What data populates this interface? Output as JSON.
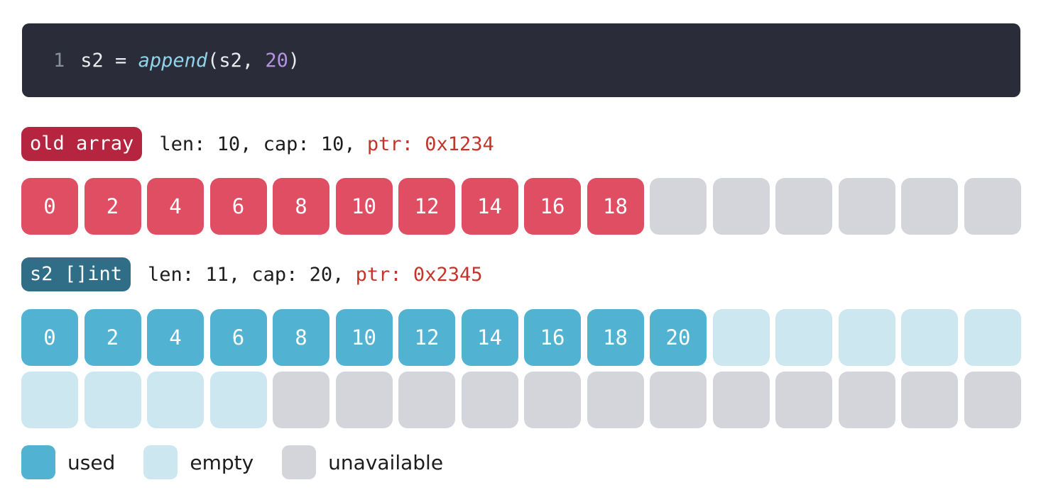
{
  "code": {
    "line_number": "1",
    "var": "s2",
    "op": " = ",
    "fn": "append",
    "open": "(",
    "arg1": "s2, ",
    "arg2": "20",
    "close": ")"
  },
  "old_array": {
    "tag": "old array",
    "meta": "len: 10, cap: 10, ",
    "ptr": "ptr: 0x1234",
    "cells": [
      {
        "value": "0",
        "state": "red"
      },
      {
        "value": "2",
        "state": "red"
      },
      {
        "value": "4",
        "state": "red"
      },
      {
        "value": "6",
        "state": "red"
      },
      {
        "value": "8",
        "state": "red"
      },
      {
        "value": "10",
        "state": "red"
      },
      {
        "value": "12",
        "state": "red"
      },
      {
        "value": "14",
        "state": "red"
      },
      {
        "value": "16",
        "state": "red"
      },
      {
        "value": "18",
        "state": "red"
      },
      {
        "value": "",
        "state": "unavail"
      },
      {
        "value": "",
        "state": "unavail"
      },
      {
        "value": "",
        "state": "unavail"
      },
      {
        "value": "",
        "state": "unavail"
      },
      {
        "value": "",
        "state": "unavail"
      },
      {
        "value": "",
        "state": "unavail"
      }
    ]
  },
  "new_slice": {
    "tag": "s2 []int",
    "meta": "len: 11, cap: 20, ",
    "ptr": "ptr: 0x2345",
    "rows": [
      [
        {
          "value": "0",
          "state": "used"
        },
        {
          "value": "2",
          "state": "used"
        },
        {
          "value": "4",
          "state": "used"
        },
        {
          "value": "6",
          "state": "used"
        },
        {
          "value": "8",
          "state": "used"
        },
        {
          "value": "10",
          "state": "used"
        },
        {
          "value": "12",
          "state": "used"
        },
        {
          "value": "14",
          "state": "used"
        },
        {
          "value": "16",
          "state": "used"
        },
        {
          "value": "18",
          "state": "used"
        },
        {
          "value": "20",
          "state": "used"
        },
        {
          "value": "",
          "state": "empty"
        },
        {
          "value": "",
          "state": "empty"
        },
        {
          "value": "",
          "state": "empty"
        },
        {
          "value": "",
          "state": "empty"
        },
        {
          "value": "",
          "state": "empty"
        }
      ],
      [
        {
          "value": "",
          "state": "empty"
        },
        {
          "value": "",
          "state": "empty"
        },
        {
          "value": "",
          "state": "empty"
        },
        {
          "value": "",
          "state": "empty"
        },
        {
          "value": "",
          "state": "unavail"
        },
        {
          "value": "",
          "state": "unavail"
        },
        {
          "value": "",
          "state": "unavail"
        },
        {
          "value": "",
          "state": "unavail"
        },
        {
          "value": "",
          "state": "unavail"
        },
        {
          "value": "",
          "state": "unavail"
        },
        {
          "value": "",
          "state": "unavail"
        },
        {
          "value": "",
          "state": "unavail"
        },
        {
          "value": "",
          "state": "unavail"
        },
        {
          "value": "",
          "state": "unavail"
        },
        {
          "value": "",
          "state": "unavail"
        },
        {
          "value": "",
          "state": "unavail"
        }
      ]
    ]
  },
  "legend": {
    "used": "used",
    "empty": "empty",
    "unavailable": "unavailable"
  },
  "colors": {
    "old_used": "#e04e63",
    "used": "#52b2d2",
    "empty": "#cce7ef",
    "unavailable": "#d3d5da",
    "ptr": "#c3352b"
  }
}
